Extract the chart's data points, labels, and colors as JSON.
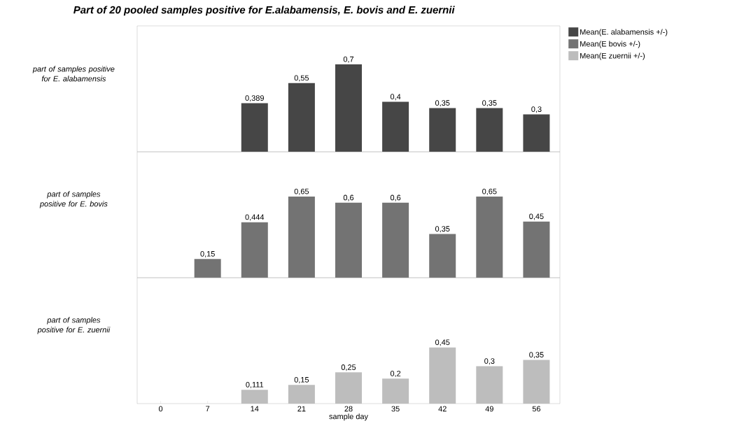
{
  "chart_data": [
    {
      "type": "bar",
      "title": "Part of 20 pooled samples positive for E.alabamensis, E. bovis and E. zuernii",
      "ylabel": "part of samples positive for E. alabamensis",
      "categories": [
        "0",
        "7",
        "14",
        "21",
        "28",
        "35",
        "42",
        "49",
        "56"
      ],
      "tick_labels": false,
      "legend": "right",
      "series": [
        {
          "name": "Mean(E. alabamensis +/-)",
          "color": "#464646",
          "values": [
            null,
            null,
            0.389,
            0.55,
            0.7,
            0.4,
            0.35,
            0.35,
            0.3
          ],
          "value_labels": [
            null,
            null,
            "0,389",
            "0,55",
            "0,7",
            "0,4",
            "0,35",
            "0,35",
            "0,3"
          ]
        }
      ]
    },
    {
      "type": "bar",
      "ylabel": "part of samples positive for E. bovis",
      "categories": [
        "0",
        "7",
        "14",
        "21",
        "28",
        "35",
        "42",
        "49",
        "56"
      ],
      "tick_labels": false,
      "legend": "right",
      "series": [
        {
          "name": "Mean(E bovis +/-)",
          "color": "#737373",
          "values": [
            null,
            0.15,
            0.444,
            0.65,
            0.6,
            0.6,
            0.35,
            0.65,
            0.45
          ],
          "value_labels": [
            null,
            "0,15",
            "0,444",
            "0,65",
            "0,6",
            "0,6",
            "0,35",
            "0,65",
            "0,45"
          ]
        }
      ]
    },
    {
      "type": "bar",
      "ylabel": "part of samples positive for E. zuernii",
      "xlabel": "sample day",
      "categories": [
        "0",
        "7",
        "14",
        "21",
        "28",
        "35",
        "42",
        "49",
        "56"
      ],
      "tick_labels": "x",
      "legend": "right",
      "series": [
        {
          "name": "Mean(E zuernii +/-)",
          "color": "#bdbdbd",
          "values": [
            null,
            null,
            0.111,
            0.15,
            0.25,
            0.2,
            0.45,
            0.3,
            0.35
          ],
          "value_labels": [
            null,
            null,
            "0,111",
            "0,15",
            "0,25",
            "0,2",
            "0,45",
            "0,3",
            "0,35"
          ]
        }
      ]
    }
  ]
}
